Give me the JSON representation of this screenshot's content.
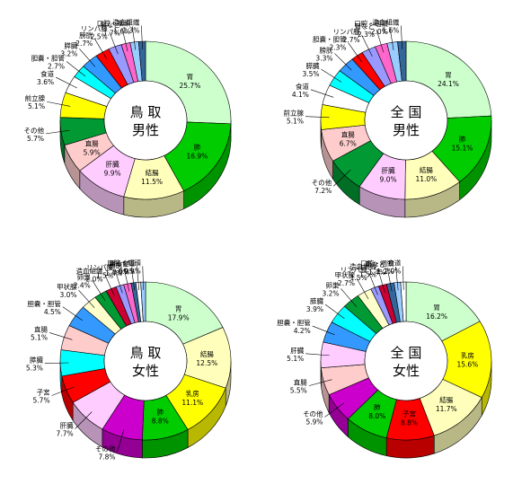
{
  "chart_data": [
    {
      "type": "pie",
      "title": "鳥 取",
      "subtitle": "男性",
      "slices": [
        {
          "name": "胃",
          "value": 25.7,
          "color": "#ccffcc",
          "label": "胃",
          "inside": true
        },
        {
          "name": "肺",
          "value": 16.9,
          "color": "#00cc00",
          "label": "肺",
          "inside": true
        },
        {
          "name": "結腸",
          "value": 11.5,
          "color": "#ffffbb",
          "label": "結腸",
          "inside": true
        },
        {
          "name": "肝臓",
          "value": 9.9,
          "color": "#ffccff",
          "label": "肝臓",
          "inside": true
        },
        {
          "name": "直腸",
          "value": 5.9,
          "color": "#ffcccc",
          "label": "直腸",
          "inside": true
        },
        {
          "name": "その他",
          "value": 5.7,
          "color": "#009933",
          "label": "その他",
          "inside": false
        },
        {
          "name": "前立腺",
          "value": 5.1,
          "color": "#ffff00",
          "label": "前立腺",
          "inside": false
        },
        {
          "name": "食道",
          "value": 3.6,
          "color": "#ffffff",
          "label": "食道",
          "inside": false
        },
        {
          "name": "胆嚢・胆管",
          "value": 2.7,
          "color": "#00ffff",
          "label": "胆嚢・胆管",
          "inside": false
        },
        {
          "name": "膵臓",
          "value": 3.2,
          "color": "#3399ff",
          "label": "膵臓",
          "inside": false
        },
        {
          "name": "膀胱",
          "value": 2.7,
          "color": "#ff0000",
          "label": "膀胱",
          "inside": false
        },
        {
          "name": "リンパ腫",
          "value": 2.5,
          "color": "#9999ff",
          "label": "リンパ腫",
          "inside": false
        },
        {
          "name": "腎など",
          "value": 1.7,
          "color": "#ff66cc",
          "label": "腎など",
          "inside": false
        },
        {
          "name": "口腔・咽頭",
          "value": 1.6,
          "color": "#99ccff",
          "label": "口腔・咽頭",
          "inside": false
        },
        {
          "name": "造血組織",
          "value": 1.3,
          "color": "#336699",
          "label": "造血組織",
          "inside": false
        }
      ]
    },
    {
      "type": "pie",
      "title": "全 国",
      "subtitle": "男性",
      "slices": [
        {
          "name": "胃",
          "value": 24.1,
          "color": "#ccffcc",
          "label": "胃",
          "inside": true
        },
        {
          "name": "肺",
          "value": 15.1,
          "color": "#00cc00",
          "label": "肺",
          "inside": true
        },
        {
          "name": "結腸",
          "value": 11.0,
          "color": "#ffffbb",
          "label": "結腸",
          "inside": true
        },
        {
          "name": "肝臓",
          "value": 9.0,
          "color": "#ffccff",
          "label": "肝臓",
          "inside": true
        },
        {
          "name": "その他",
          "value": 7.2,
          "color": "#009933",
          "label": "その他",
          "inside": false
        },
        {
          "name": "直腸",
          "value": 6.7,
          "color": "#ffcccc",
          "label": "直腸",
          "inside": true
        },
        {
          "name": "前立腺",
          "value": 5.1,
          "color": "#ffff00",
          "label": "前立腺",
          "inside": false
        },
        {
          "name": "食道",
          "value": 4.1,
          "color": "#ffffff",
          "label": "食道",
          "inside": false
        },
        {
          "name": "膵臓",
          "value": 3.5,
          "color": "#00ffff",
          "label": "膵臓",
          "inside": false
        },
        {
          "name": "膀胱",
          "value": 3.3,
          "color": "#3399ff",
          "label": "膀胱",
          "inside": false
        },
        {
          "name": "胆嚢・胆管",
          "value": 2.3,
          "color": "#ff0000",
          "label": "胆嚢・胆管",
          "inside": false
        },
        {
          "name": "リンパ腫",
          "value": 2.7,
          "color": "#9999ff",
          "label": "リンパ腫",
          "inside": false
        },
        {
          "name": "腎など",
          "value": 2.3,
          "color": "#ff66cc",
          "label": "腎など",
          "inside": false
        },
        {
          "name": "口腔・咽頭",
          "value": 2.0,
          "color": "#99ccff",
          "label": "口腔・咽頭",
          "inside": false
        },
        {
          "name": "造血組織",
          "value": 1.6,
          "color": "#336699",
          "label": "造血組織",
          "inside": false
        }
      ]
    },
    {
      "type": "pie",
      "title": "鳥 取",
      "subtitle": "女性",
      "slices": [
        {
          "name": "胃",
          "value": 17.9,
          "color": "#ccffcc",
          "label": "胃",
          "inside": true
        },
        {
          "name": "結腸",
          "value": 12.5,
          "color": "#ffffbb",
          "label": "結腸",
          "inside": true
        },
        {
          "name": "乳房",
          "value": 11.1,
          "color": "#ffff00",
          "label": "乳房",
          "inside": true
        },
        {
          "name": "肺",
          "value": 8.8,
          "color": "#00cc00",
          "label": "肺",
          "inside": true
        },
        {
          "name": "その他",
          "value": 7.8,
          "color": "#cc00cc",
          "label": "その他",
          "inside": false
        },
        {
          "name": "肝臓",
          "value": 7.7,
          "color": "#ffccff",
          "label": "肝臓",
          "inside": false
        },
        {
          "name": "子宮",
          "value": 5.7,
          "color": "#ff0000",
          "label": "子宮",
          "inside": false
        },
        {
          "name": "膵臓",
          "value": 5.3,
          "color": "#00ffff",
          "label": "膵臓",
          "inside": false
        },
        {
          "name": "直腸",
          "value": 5.1,
          "color": "#ffcccc",
          "label": "直腸",
          "inside": false
        },
        {
          "name": "胆嚢・胆管",
          "value": 4.5,
          "color": "#3399ff",
          "label": "胆嚢・胆管",
          "inside": false
        },
        {
          "name": "甲状腺",
          "value": 3.0,
          "color": "#ffffcc",
          "label": "甲状腺",
          "inside": false
        },
        {
          "name": "卵巣",
          "value": 2.4,
          "color": "#009933",
          "label": "卵巣",
          "inside": false
        },
        {
          "name": "造血組織",
          "value": 2.0,
          "color": "#cc0033",
          "label": "造血組織",
          "inside": false
        },
        {
          "name": "リンパ腫",
          "value": 1.5,
          "color": "#9999ff",
          "label": "リンパ腫",
          "inside": false
        },
        {
          "name": "膀胱",
          "value": 1.4,
          "color": "#ff66cc",
          "label": "膀胱",
          "inside": false
        },
        {
          "name": "腎など",
          "value": 0.9,
          "color": "#336699",
          "label": "腎など",
          "inside": false
        },
        {
          "name": "食道",
          "value": 0.9,
          "color": "#ffffff",
          "label": "食道",
          "inside": false
        },
        {
          "name": "口腔・咽頭",
          "value": 0.9,
          "color": "#99ccff",
          "label": "口腔・咽頭",
          "inside": false
        }
      ]
    },
    {
      "type": "pie",
      "title": "全 国",
      "subtitle": "女性",
      "slices": [
        {
          "name": "胃",
          "value": 16.2,
          "color": "#ccffcc",
          "label": "胃",
          "inside": true
        },
        {
          "name": "乳房",
          "value": 15.6,
          "color": "#ffff00",
          "label": "乳房",
          "inside": true
        },
        {
          "name": "結腸",
          "value": 11.7,
          "color": "#ffffbb",
          "label": "結腸",
          "inside": true
        },
        {
          "name": "子宮",
          "value": 8.8,
          "color": "#ff0000",
          "label": "子宮",
          "inside": true
        },
        {
          "name": "肺",
          "value": 8.0,
          "color": "#00cc00",
          "label": "肺",
          "inside": true
        },
        {
          "name": "その他",
          "value": 5.9,
          "color": "#cc00cc",
          "label": "その他",
          "inside": false
        },
        {
          "name": "直腸",
          "value": 5.5,
          "color": "#ffcccc",
          "label": "直腸",
          "inside": false
        },
        {
          "name": "肝臓",
          "value": 5.1,
          "color": "#ffccff",
          "label": "肝臓",
          "inside": false
        },
        {
          "name": "胆嚢・胆管",
          "value": 4.2,
          "color": "#3399ff",
          "label": "胆嚢・胆管",
          "inside": false
        },
        {
          "name": "膵臓",
          "value": 3.9,
          "color": "#00ffff",
          "label": "膵臓",
          "inside": false
        },
        {
          "name": "卵巣",
          "value": 3.2,
          "color": "#009933",
          "label": "卵巣",
          "inside": false
        },
        {
          "name": "甲状腺",
          "value": 2.7,
          "color": "#ffffcc",
          "label": "甲状腺",
          "inside": false
        },
        {
          "name": "リンパ腫",
          "value": 1.5,
          "color": "#9999ff",
          "label": "リンパ腫",
          "inside": false
        },
        {
          "name": "造血組織",
          "value": 1.5,
          "color": "#cc0033",
          "label": "造血組織",
          "inside": false
        },
        {
          "name": "腎など",
          "value": 1.4,
          "color": "#336699",
          "label": "腎など",
          "inside": false
        },
        {
          "name": "口腔・咽頭",
          "value": 1.2,
          "color": "#99ccff",
          "label": "口腔・咽頭",
          "inside": false
        },
        {
          "name": "食道",
          "value": 1.0,
          "color": "#ffffff",
          "label": "食道",
          "inside": false
        }
      ]
    }
  ]
}
